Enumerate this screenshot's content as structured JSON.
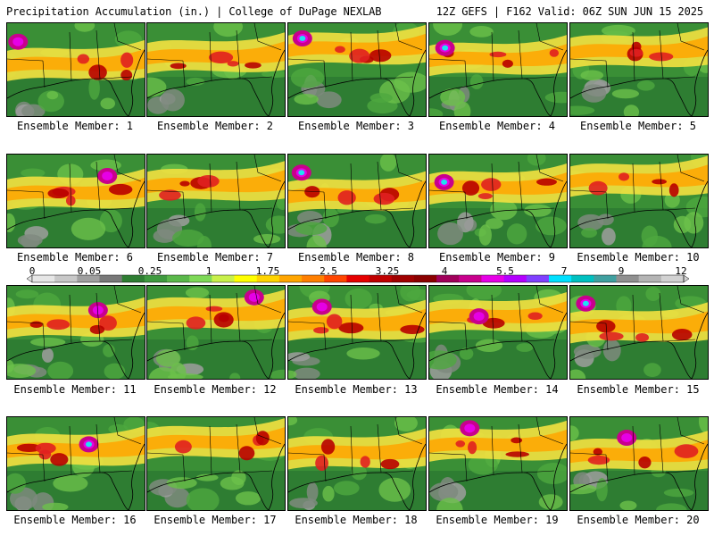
{
  "header": {
    "left": "Precipitation Accumulation (in.) | College of DuPage NEXLAB",
    "right": "12Z GEFS | F162 Valid: 06Z SUN JUN 15 2025"
  },
  "panels": [
    {
      "caption": "Ensemble Member: 1"
    },
    {
      "caption": "Ensemble Member: 2"
    },
    {
      "caption": "Ensemble Member: 3"
    },
    {
      "caption": "Ensemble Member: 4"
    },
    {
      "caption": "Ensemble Member: 5"
    },
    {
      "caption": "Ensemble Member: 6"
    },
    {
      "caption": "Ensemble Member: 7"
    },
    {
      "caption": "Ensemble Member: 8"
    },
    {
      "caption": "Ensemble Member: 9"
    },
    {
      "caption": "Ensemble Member: 10"
    },
    {
      "caption": "Ensemble Member: 11"
    },
    {
      "caption": "Ensemble Member: 12"
    },
    {
      "caption": "Ensemble Member: 13"
    },
    {
      "caption": "Ensemble Member: 14"
    },
    {
      "caption": "Ensemble Member: 15"
    },
    {
      "caption": "Ensemble Member: 16"
    },
    {
      "caption": "Ensemble Member: 17"
    },
    {
      "caption": "Ensemble Member: 18"
    },
    {
      "caption": "Ensemble Member: 19"
    },
    {
      "caption": "Ensemble Member: 20"
    }
  ],
  "legend": {
    "ticks": [
      "0",
      "0.05",
      "0.25",
      "1",
      "1.75",
      "2.5",
      "3.25",
      "4",
      "5.5",
      "7",
      "9",
      "12"
    ],
    "colors": [
      "#e6e6e6",
      "#c8c8c8",
      "#a0a0a0",
      "#787878",
      "#2e7d32",
      "#3f9a3f",
      "#5ab84a",
      "#7ed957",
      "#c8f04a",
      "#ffff00",
      "#ffd400",
      "#ffa500",
      "#ff7f00",
      "#ff4500",
      "#e60000",
      "#c00000",
      "#a00000",
      "#8b0000",
      "#a0005a",
      "#c8008c",
      "#e600e6",
      "#b400ff",
      "#8040ff",
      "#00e0ff",
      "#00c0c0",
      "#40a0a0",
      "#909090",
      "#b4b4b4",
      "#d2d2d2"
    ]
  }
}
